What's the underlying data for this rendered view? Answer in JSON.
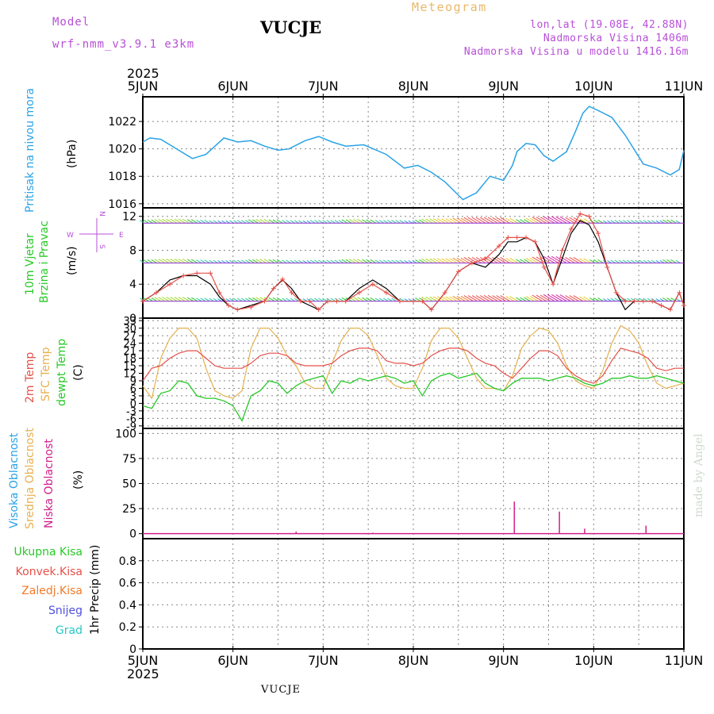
{
  "header": {
    "model_label": "Model",
    "model_name": "wrf-nmm_v3.9.1  e3km",
    "station": "VUCJE",
    "subtitle": "Meteogram",
    "coords": "lon,lat (19.08E, 42.88N)",
    "elevation": "Nadmorska Visina 1406m",
    "model_elevation": "Nadmorska Visina u modelu 1416.16m"
  },
  "time_axis": {
    "year": "2025",
    "labels": [
      "5JUN",
      "6JUN",
      "7JUN",
      "8JUN",
      "9JUN",
      "10JUN",
      "11JUN"
    ]
  },
  "footer": {
    "station": "VUCJE",
    "year": "2025"
  },
  "watermark": "made by Angel",
  "panels": {
    "pressure": {
      "title": "Pritisak na nivou mora",
      "unit": "(hPa)"
    },
    "wind": {
      "title1": "10m Vjetar",
      "title2": "Brzina i Pravac",
      "unit": "(m/s)",
      "compass": {
        "n": "N",
        "w": "W",
        "e": "E",
        "s": "S"
      }
    },
    "temperature": {
      "l1": "2m Temp",
      "l2": "SFC Temp",
      "l3": "dewpt Temp",
      "unit": "(C)"
    },
    "cloud": {
      "l1": "Visoka Oblacnost",
      "l2": "Srednja Oblacnost",
      "l3": "Niska Oblacnost",
      "unit": "(%)"
    },
    "precip": {
      "items": [
        "Ukupna Kisa",
        "Konvek.Kisa",
        "Zaledj.Kisa",
        "Snijeg",
        "Grad"
      ],
      "unit": "1hr Precip (mm)"
    }
  },
  "colors": {
    "pressure": "#2aa3e6",
    "temp2m": "#e6504a",
    "sfc": "#e6b150",
    "dew": "#28c828",
    "gust": "#e6504a",
    "wind": "#000000",
    "cloud_low": "#d0208a",
    "ukupna": "#28c828",
    "konvek": "#e6504a",
    "zaledj": "#f07a28",
    "snijeg": "#5050e0",
    "grad": "#28c8c8",
    "cloud_high": "#2aa3e6",
    "cloud_mid": "#e6b150",
    "purple": "#b84fd8"
  },
  "chart_data": [
    {
      "type": "line",
      "title": "Pritisak na nivou mora",
      "ylabel": "(hPa)",
      "ylim": [
        1015.7,
        1023.8
      ],
      "yticks": [
        1016,
        1018,
        1020,
        1022
      ],
      "x_days": [
        0,
        0.08,
        0.2,
        0.35,
        0.55,
        0.7,
        0.9,
        1.05,
        1.2,
        1.35,
        1.5,
        1.62,
        1.8,
        1.95,
        2.1,
        2.25,
        2.45,
        2.7,
        2.9,
        3.05,
        3.2,
        3.35,
        3.55,
        3.7,
        3.85,
        4.0,
        4.1,
        4.15,
        4.25,
        4.35,
        4.45,
        4.55,
        4.7,
        4.8,
        4.88,
        4.95,
        5.05,
        5.2,
        5.35,
        5.55,
        5.7,
        5.85,
        5.95,
        6.0
      ],
      "series": [
        {
          "name": "pressure",
          "values": [
            1020.5,
            1020.8,
            1020.7,
            1020.1,
            1019.3,
            1019.6,
            1020.8,
            1020.5,
            1020.6,
            1020.2,
            1019.9,
            1020.0,
            1020.6,
            1020.9,
            1020.5,
            1020.2,
            1020.3,
            1019.6,
            1018.6,
            1018.8,
            1018.3,
            1017.6,
            1016.3,
            1016.8,
            1018.0,
            1017.7,
            1018.8,
            1019.8,
            1020.4,
            1020.3,
            1019.5,
            1019.1,
            1019.8,
            1021.3,
            1022.6,
            1023.1,
            1022.8,
            1022.3,
            1021.0,
            1018.9,
            1018.6,
            1018.1,
            1018.5,
            1019.9
          ]
        }
      ]
    },
    {
      "type": "line",
      "title": "10m Vjetar Brzina i Pravac",
      "ylabel": "(m/s)",
      "ylim": [
        0,
        13
      ],
      "yticks": [
        0,
        4,
        8,
        12
      ],
      "x_days": [
        0,
        0.15,
        0.3,
        0.45,
        0.6,
        0.75,
        0.85,
        0.95,
        1.05,
        1.2,
        1.35,
        1.45,
        1.55,
        1.65,
        1.75,
        1.85,
        1.95,
        2.05,
        2.15,
        2.25,
        2.4,
        2.55,
        2.7,
        2.85,
        3.0,
        3.1,
        3.2,
        3.35,
        3.5,
        3.65,
        3.8,
        3.95,
        4.05,
        4.15,
        4.25,
        4.35,
        4.45,
        4.55,
        4.65,
        4.75,
        4.85,
        4.95,
        5.05,
        5.15,
        5.25,
        5.35,
        5.45,
        5.55,
        5.65,
        5.75,
        5.85,
        5.95,
        6.0
      ],
      "series": [
        {
          "name": "wind speed",
          "values": [
            2.0,
            3.0,
            4.5,
            5.0,
            5.0,
            4.0,
            2.5,
            1.5,
            1.0,
            1.5,
            2.0,
            3.5,
            4.5,
            3.5,
            2.0,
            1.5,
            1.0,
            2.0,
            2.0,
            2.0,
            3.5,
            4.5,
            3.5,
            2.0,
            2.0,
            2.0,
            1.0,
            3.0,
            5.5,
            6.5,
            6.0,
            7.5,
            9.0,
            9.0,
            9.5,
            9.0,
            7.0,
            4.0,
            7.0,
            10.0,
            11.5,
            11.0,
            9.0,
            6.0,
            3.0,
            1.0,
            2.0,
            2.0,
            2.0,
            1.5,
            1.0,
            3.0,
            1.5
          ]
        },
        {
          "name": "gust",
          "values": [
            2.0,
            3.0,
            4.0,
            5.0,
            5.3,
            5.3,
            3.0,
            1.5,
            1.0,
            1.3,
            2.0,
            3.5,
            4.6,
            3.0,
            2.0,
            2.0,
            1.0,
            2.0,
            2.0,
            2.0,
            3.0,
            4.0,
            3.0,
            2.0,
            2.0,
            2.0,
            1.0,
            3.0,
            5.5,
            6.5,
            7.0,
            8.5,
            9.5,
            9.5,
            9.5,
            9.0,
            6.0,
            4.0,
            8.0,
            10.5,
            12.3,
            12.0,
            10.0,
            6.0,
            3.0,
            2.0,
            2.0,
            2.0,
            2.0,
            1.5,
            1.0,
            3.0,
            1.5
          ]
        }
      ]
    },
    {
      "type": "line",
      "title": "2m Temp / SFC Temp / dewpt Temp",
      "ylabel": "(C)",
      "ylim": [
        -10,
        34
      ],
      "yticks": [
        -9,
        -6,
        -3,
        0,
        3,
        6,
        9,
        12,
        15,
        18,
        21,
        24,
        27,
        30,
        33
      ],
      "x_days": [
        0,
        0.1,
        0.2,
        0.3,
        0.4,
        0.5,
        0.6,
        0.7,
        0.8,
        0.9,
        1.0,
        1.1,
        1.2,
        1.3,
        1.4,
        1.5,
        1.6,
        1.7,
        1.8,
        1.9,
        2.0,
        2.1,
        2.2,
        2.3,
        2.4,
        2.5,
        2.6,
        2.7,
        2.8,
        2.9,
        3.0,
        3.1,
        3.2,
        3.3,
        3.4,
        3.5,
        3.6,
        3.7,
        3.8,
        3.9,
        4.0,
        4.1,
        4.2,
        4.3,
        4.4,
        4.5,
        4.6,
        4.7,
        4.8,
        4.9,
        5.0,
        5.1,
        5.2,
        5.3,
        5.4,
        5.5,
        5.6,
        5.7,
        5.8,
        5.9,
        6.0
      ],
      "series": [
        {
          "name": "2m Temp",
          "values": [
            9,
            14,
            15,
            18,
            20,
            21,
            21,
            18,
            15,
            14,
            14,
            14,
            16,
            19,
            20,
            20,
            19,
            16,
            15,
            15,
            15,
            16,
            19,
            21,
            22,
            22,
            21,
            17,
            16,
            16,
            15,
            16,
            19,
            21,
            22,
            22,
            21,
            18,
            16,
            15,
            12,
            10,
            14,
            18,
            21,
            21,
            19,
            14,
            11,
            9,
            8,
            11,
            17,
            22,
            21,
            20,
            18,
            14,
            13,
            14,
            14
          ]
        },
        {
          "name": "SFC Temp",
          "values": [
            7,
            2,
            18,
            26,
            30,
            30,
            26,
            14,
            5,
            3,
            2,
            5,
            22,
            30,
            30,
            26,
            19,
            15,
            8,
            6,
            6,
            16,
            25,
            30,
            30,
            27,
            19,
            10,
            7,
            6,
            6,
            14,
            25,
            30,
            30,
            26,
            18,
            10,
            6,
            6,
            5,
            11,
            22,
            27,
            30,
            29,
            24,
            15,
            9,
            7,
            6,
            13,
            24,
            31,
            29,
            24,
            15,
            8,
            6,
            7,
            8
          ]
        },
        {
          "name": "dewpt Temp",
          "values": [
            -1,
            -2,
            4,
            5,
            9,
            8,
            3,
            2,
            2,
            1,
            -1,
            -7,
            3,
            5,
            9,
            8,
            4,
            7,
            9,
            10,
            11,
            4,
            9,
            8,
            10,
            9,
            10,
            11,
            10,
            8,
            9,
            3,
            9,
            11,
            12,
            10,
            11,
            12,
            8,
            6,
            5,
            8,
            10,
            10,
            10,
            9,
            10,
            11,
            10,
            8,
            7,
            8,
            10,
            10,
            11,
            10,
            10,
            11,
            10,
            9,
            8
          ]
        }
      ]
    },
    {
      "type": "bar",
      "title": "Visoka / Srednja / Niska Oblacnost",
      "ylabel": "(%)",
      "ylim": [
        -5,
        105
      ],
      "yticks": [
        0,
        25,
        50,
        75,
        100
      ],
      "series": [
        {
          "name": "Niska Oblacnost",
          "x_days": [
            1.7,
            2.55,
            4.12,
            4.62,
            4.9,
            5.58
          ],
          "values": [
            2,
            1,
            32,
            22,
            5,
            8
          ]
        }
      ]
    },
    {
      "type": "bar",
      "title": "1hr Precip",
      "ylabel": "1hr Precip (mm)",
      "ylim": [
        0,
        1.0
      ],
      "yticks": [
        0,
        0.2,
        0.4,
        0.6,
        0.8
      ],
      "series": [
        {
          "name": "Ukupna Kisa",
          "values": []
        }
      ]
    }
  ]
}
